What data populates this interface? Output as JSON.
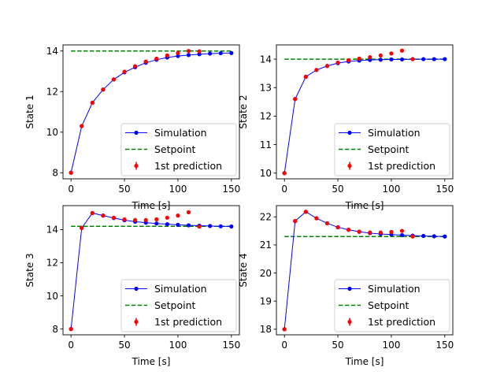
{
  "chart_data": [
    {
      "type": "line",
      "xlabel": "Time [s]",
      "ylabel": "State 1",
      "xlim": [
        -7.5,
        157.5
      ],
      "ylim": [
        7.7,
        14.3
      ],
      "xticks": [
        0,
        50,
        100,
        150
      ],
      "yticks": [
        8,
        10,
        12,
        14
      ],
      "legend_position": "lower-right",
      "series": [
        {
          "name": "Simulation",
          "style": "line-marker",
          "x": [
            0,
            10,
            20,
            30,
            40,
            50,
            60,
            70,
            80,
            90,
            100,
            110,
            120,
            130,
            140,
            150
          ],
          "y": [
            8.0,
            10.3,
            11.45,
            12.1,
            12.6,
            12.95,
            13.2,
            13.42,
            13.57,
            13.68,
            13.75,
            13.8,
            13.84,
            13.87,
            13.89,
            13.9
          ]
        },
        {
          "name": "Setpoint",
          "style": "dashed",
          "x": [
            0,
            150
          ],
          "y": [
            14.0,
            14.0
          ]
        },
        {
          "name": "1st prediction",
          "style": "errorbar-points",
          "x": [
            0,
            10,
            20,
            30,
            40,
            50,
            60,
            70,
            80,
            90,
            100,
            110,
            120
          ],
          "y": [
            8.0,
            10.3,
            11.45,
            12.1,
            12.6,
            12.98,
            13.25,
            13.48,
            13.62,
            13.78,
            13.9,
            14.0,
            13.98
          ]
        }
      ]
    },
    {
      "type": "line",
      "xlabel": "Time [s]",
      "ylabel": "State 2",
      "xlim": [
        -7.5,
        157.5
      ],
      "ylim": [
        9.8,
        14.5
      ],
      "xticks": [
        0,
        50,
        100,
        150
      ],
      "yticks": [
        10,
        11,
        12,
        13,
        14
      ],
      "legend_position": "lower-right",
      "series": [
        {
          "name": "Simulation",
          "style": "line-marker",
          "x": [
            0,
            10,
            20,
            30,
            40,
            50,
            60,
            70,
            80,
            90,
            100,
            110,
            120,
            130,
            140,
            150
          ],
          "y": [
            10.0,
            12.6,
            13.38,
            13.62,
            13.76,
            13.86,
            13.92,
            13.95,
            13.97,
            13.98,
            13.99,
            13.99,
            14.0,
            14.0,
            14.0,
            14.0
          ]
        },
        {
          "name": "Setpoint",
          "style": "dashed",
          "x": [
            0,
            150
          ],
          "y": [
            14.0,
            14.0
          ]
        },
        {
          "name": "1st prediction",
          "style": "errorbar-points",
          "x": [
            0,
            10,
            20,
            30,
            40,
            50,
            60,
            70,
            80,
            90,
            100,
            110,
            120
          ],
          "y": [
            10.0,
            12.6,
            13.38,
            13.62,
            13.76,
            13.88,
            13.96,
            14.02,
            14.07,
            14.13,
            14.2,
            14.3,
            14.0
          ]
        }
      ]
    },
    {
      "type": "line",
      "xlabel": "Time [s]",
      "ylabel": "State 3",
      "xlim": [
        -7.5,
        157.5
      ],
      "ylim": [
        7.65,
        15.45
      ],
      "xticks": [
        0,
        50,
        100,
        150
      ],
      "yticks": [
        8,
        10,
        12,
        14
      ],
      "legend_position": "lower-right",
      "series": [
        {
          "name": "Simulation",
          "style": "line-marker",
          "x": [
            0,
            10,
            20,
            30,
            40,
            50,
            60,
            70,
            80,
            90,
            100,
            110,
            120,
            130,
            140,
            150
          ],
          "y": [
            8.0,
            14.1,
            15.0,
            14.85,
            14.7,
            14.57,
            14.48,
            14.42,
            14.37,
            14.33,
            14.29,
            14.26,
            14.24,
            14.22,
            14.2,
            14.19
          ]
        },
        {
          "name": "Setpoint",
          "style": "dashed",
          "x": [
            0,
            150
          ],
          "y": [
            14.2,
            14.2
          ]
        },
        {
          "name": "1st prediction",
          "style": "errorbar-points",
          "x": [
            0,
            10,
            20,
            30,
            40,
            50,
            60,
            70,
            80,
            90,
            100,
            110,
            120
          ],
          "y": [
            8.0,
            14.1,
            15.0,
            14.85,
            14.72,
            14.62,
            14.58,
            14.58,
            14.62,
            14.72,
            14.85,
            15.05,
            14.18
          ]
        }
      ]
    },
    {
      "type": "line",
      "xlabel": "Time [s]",
      "ylabel": "State 4",
      "xlim": [
        -7.5,
        157.5
      ],
      "ylim": [
        17.8,
        22.4
      ],
      "xticks": [
        0,
        50,
        100,
        150
      ],
      "yticks": [
        18,
        19,
        20,
        21,
        22
      ],
      "legend_position": "lower-right",
      "series": [
        {
          "name": "Simulation",
          "style": "line-marker",
          "x": [
            0,
            10,
            20,
            30,
            40,
            50,
            60,
            70,
            80,
            90,
            100,
            110,
            120,
            130,
            140,
            150
          ],
          "y": [
            18.0,
            21.85,
            22.18,
            21.95,
            21.77,
            21.63,
            21.54,
            21.47,
            21.42,
            21.39,
            21.37,
            21.35,
            21.33,
            21.32,
            21.31,
            21.3
          ]
        },
        {
          "name": "Setpoint",
          "style": "dashed",
          "x": [
            0,
            150
          ],
          "y": [
            21.3,
            21.3
          ]
        },
        {
          "name": "1st prediction",
          "style": "errorbar-points",
          "x": [
            0,
            10,
            20,
            30,
            40,
            50,
            60,
            70,
            80,
            90,
            100,
            110,
            120
          ],
          "y": [
            18.0,
            21.85,
            22.18,
            21.95,
            21.77,
            21.63,
            21.54,
            21.47,
            21.44,
            21.44,
            21.46,
            21.5,
            21.3
          ]
        }
      ]
    }
  ],
  "colors": {
    "simulation": "#0000ff",
    "setpoint": "#008000",
    "prediction": "#ff0000",
    "axis": "#000000",
    "legend_border": "#cccccc"
  }
}
